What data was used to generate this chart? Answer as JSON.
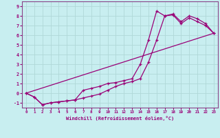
{
  "xlabel": "Windchill (Refroidissement éolien,°C)",
  "bg_color": "#c8eef0",
  "grid_color": "#b0d8d8",
  "line_color": "#990077",
  "spine_color": "#884488",
  "xlim": [
    -0.5,
    23.5
  ],
  "ylim": [
    -1.5,
    9.5
  ],
  "xticks": [
    0,
    1,
    2,
    3,
    4,
    5,
    6,
    7,
    8,
    9,
    10,
    11,
    12,
    13,
    14,
    15,
    16,
    17,
    18,
    19,
    20,
    21,
    22,
    23
  ],
  "yticks": [
    -1,
    0,
    1,
    2,
    3,
    4,
    5,
    6,
    7,
    8,
    9
  ],
  "line1_x": [
    0,
    1,
    2,
    3,
    4,
    5,
    6,
    7,
    8,
    9,
    10,
    11,
    12,
    13,
    14,
    15,
    16,
    17,
    18,
    19,
    20,
    21,
    22,
    23
  ],
  "line1_y": [
    0.0,
    -0.4,
    -1.2,
    -1.0,
    -0.9,
    -0.8,
    -0.7,
    -0.5,
    -0.3,
    -0.1,
    0.3,
    0.7,
    1.0,
    1.2,
    1.5,
    3.2,
    5.5,
    8.0,
    8.1,
    7.2,
    7.8,
    7.4,
    7.0,
    6.2
  ],
  "line2_x": [
    0,
    1,
    2,
    3,
    4,
    5,
    6,
    7,
    8,
    9,
    10,
    11,
    12,
    13,
    14,
    15,
    16,
    17,
    18,
    19,
    20,
    21,
    22,
    23
  ],
  "line2_y": [
    0.0,
    -0.4,
    -1.2,
    -1.0,
    -0.9,
    -0.8,
    -0.7,
    0.3,
    0.5,
    0.7,
    1.0,
    1.1,
    1.3,
    1.5,
    3.0,
    5.5,
    8.5,
    8.0,
    8.2,
    7.4,
    8.0,
    7.7,
    7.2,
    6.2
  ],
  "line3_x": [
    0,
    23
  ],
  "line3_y": [
    0.0,
    6.2
  ]
}
